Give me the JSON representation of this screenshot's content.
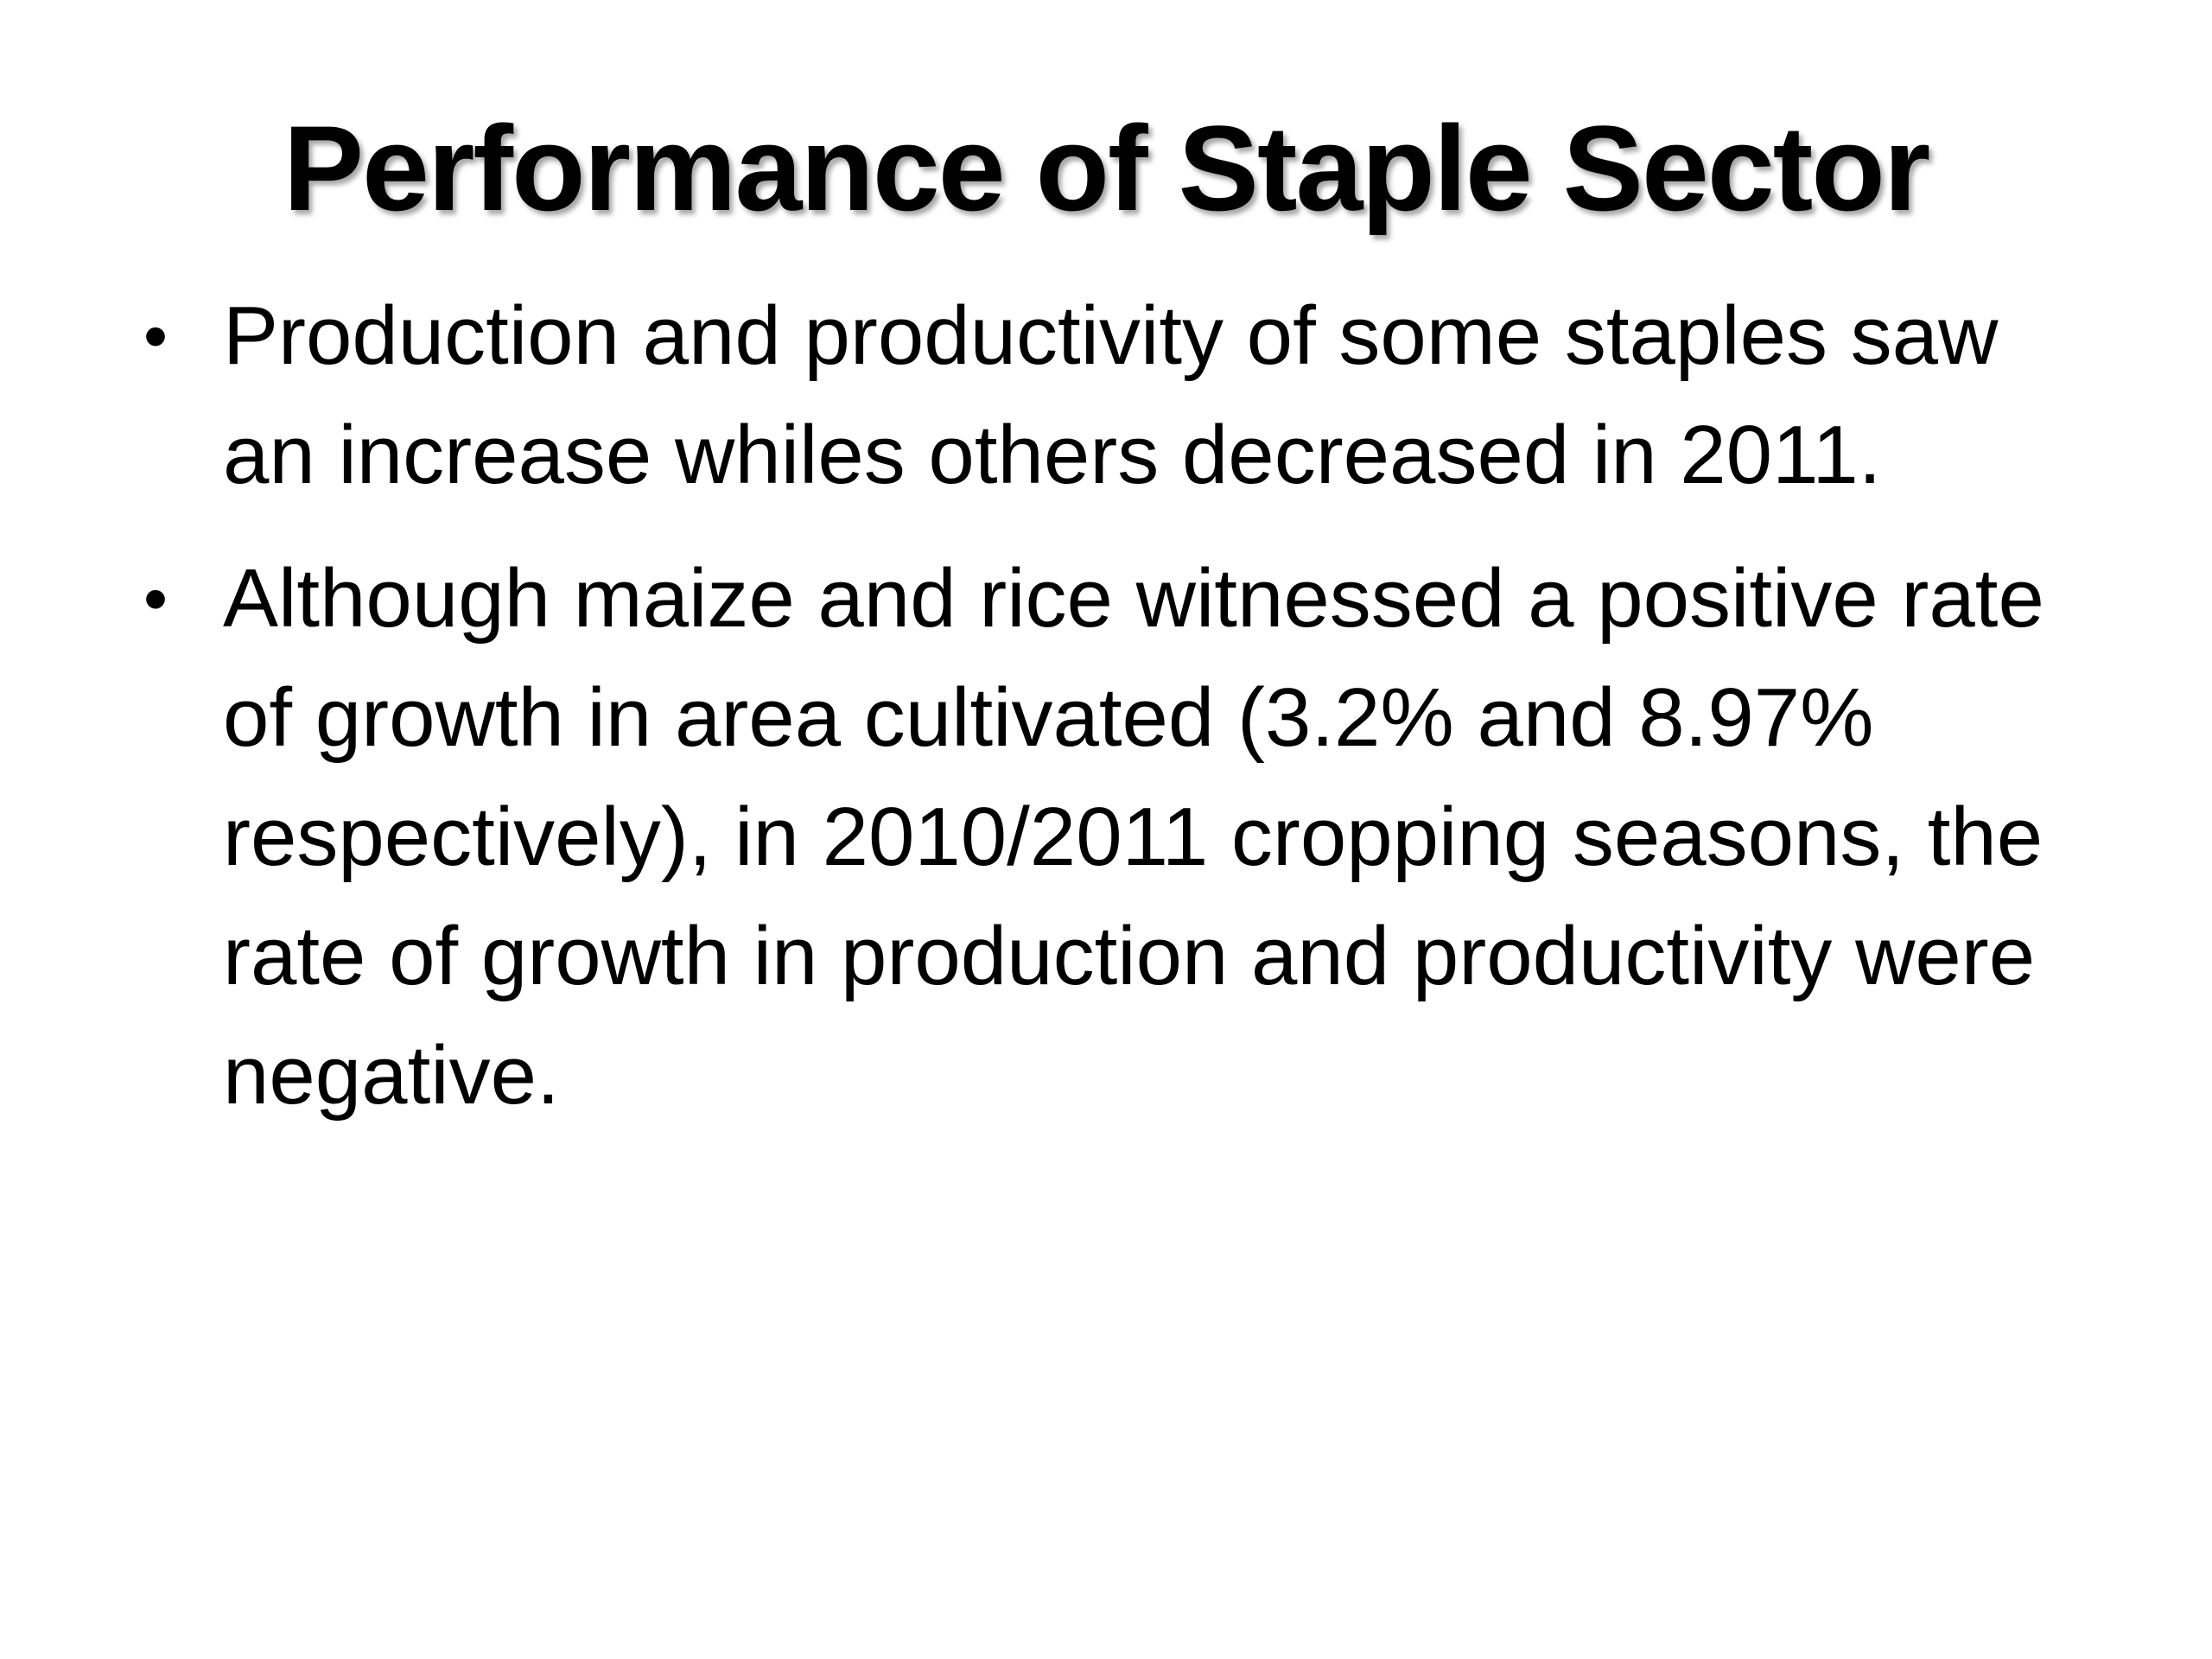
{
  "slide": {
    "title": "Performance of Staple Sector",
    "bullet_symbol": "•",
    "bullets": [
      {
        "text": "Production and productivity of some staples saw an increase whiles others decreased in 2011."
      },
      {
        "text": "Although maize and rice witnessed a positive rate of growth in area cultivated (3.2% and 8.97% respectively),  in 2010/2011 cropping seasons, the rate of growth in production and productivity were negative."
      }
    ]
  }
}
